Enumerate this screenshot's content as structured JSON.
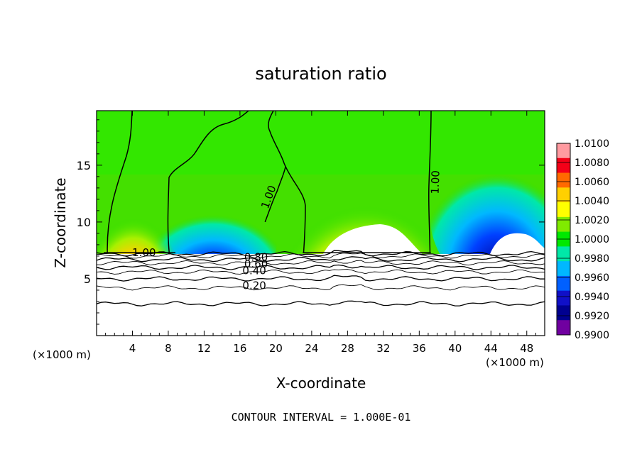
{
  "chart_data": {
    "type": "heatmap",
    "title": "saturation ratio",
    "xlabel": "X-coordinate",
    "ylabel": "Z-coordinate",
    "x_unit_left": "(×1000 m)",
    "x_unit_right": "(×1000 m)",
    "footer": "CONTOUR INTERVAL = 1.000E-01",
    "xlim": [
      0,
      50
    ],
    "ylim": [
      0,
      19.8
    ],
    "x_ticks": [
      4,
      8,
      12,
      16,
      20,
      24,
      28,
      32,
      36,
      40,
      44,
      48
    ],
    "x_tick_labels": [
      "4",
      "8",
      "12",
      "16",
      "20",
      "24",
      "28",
      "32",
      "36",
      "40",
      "44",
      "48"
    ],
    "y_ticks": [
      5,
      10,
      15
    ],
    "y_tick_labels": [
      "5",
      "10",
      "15"
    ],
    "colorbar": {
      "min": 0.99,
      "max": 1.01,
      "labels": [
        "1.0100",
        "1.0080",
        "1.0060",
        "1.0040",
        "1.0020",
        "1.0000",
        "0.9980",
        "0.9960",
        "0.9940",
        "0.9920",
        "0.9900"
      ],
      "colors": [
        "#ff9aa0",
        "#f40018",
        "#ff6a00",
        "#ffd000",
        "#ffff00",
        "#80ea00",
        "#00e800",
        "#00e8a8",
        "#00b8ff",
        "#0060ff",
        "#1010c8",
        "#000090",
        "#7000a0"
      ]
    },
    "contour_labels": [
      {
        "text": "1.00",
        "x": 5.3,
        "z": 7.3,
        "rot": 0
      },
      {
        "text": "1.00",
        "x": 19.2,
        "z": 12.2,
        "rot": -70
      },
      {
        "text": "1.00",
        "x": 37.8,
        "z": 13.5,
        "rot": -88
      },
      {
        "text": "0.80",
        "x": 17.8,
        "z": 6.9,
        "rot": 0
      },
      {
        "text": "0.60",
        "x": 17.8,
        "z": 6.3,
        "rot": 0
      },
      {
        "text": "0.40",
        "x": 17.6,
        "z": 5.7,
        "rot": 0
      },
      {
        "text": "0.20",
        "x": 17.6,
        "z": 4.4,
        "rot": 0
      }
    ],
    "cloud_base_z": 7.3
  }
}
